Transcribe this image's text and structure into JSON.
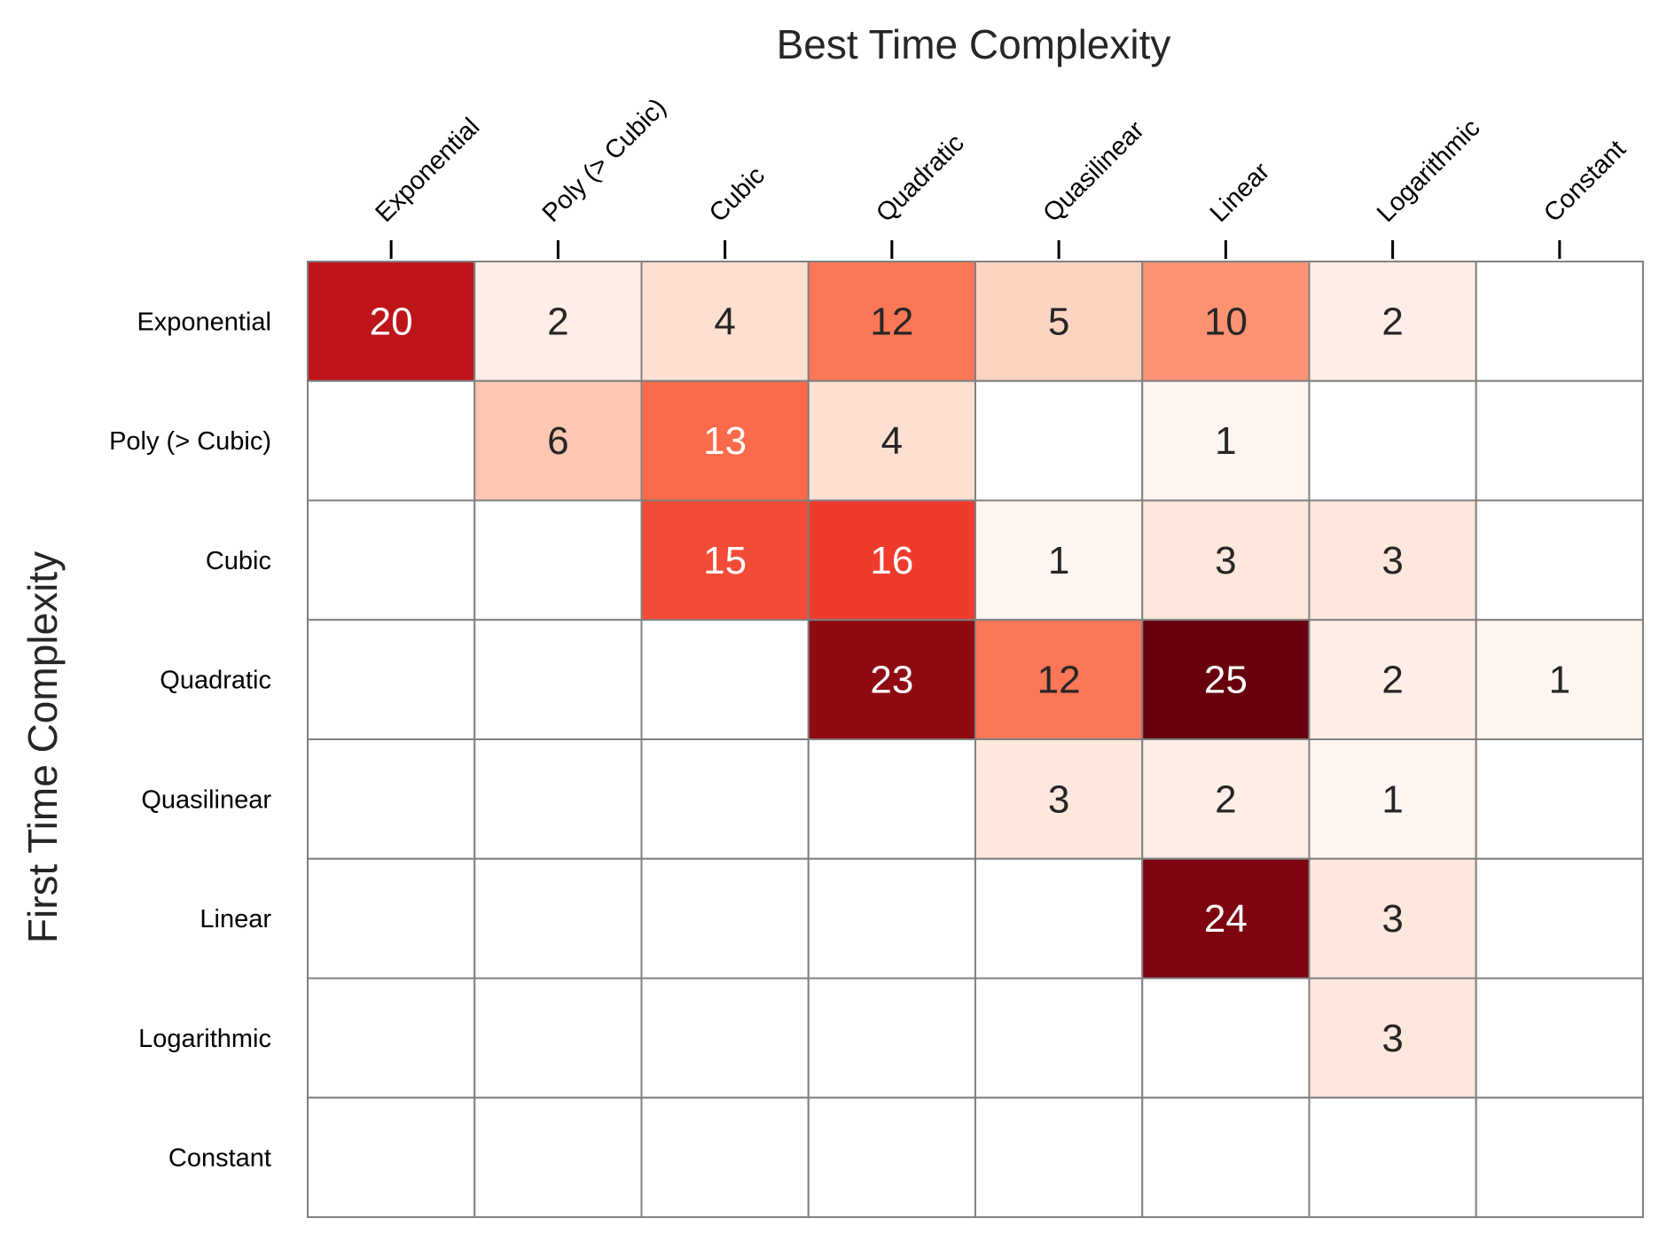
{
  "chart_data": {
    "type": "heatmap",
    "title": "Best Time Complexity",
    "xlabel": "Best Time Complexity",
    "ylabel": "First Time Complexity",
    "x_categories": [
      "Exponential",
      "Poly (> Cubic)",
      "Cubic",
      "Quadratic",
      "Quasilinear",
      "Linear",
      "Logarithmic",
      "Constant"
    ],
    "y_categories": [
      "Exponential",
      "Poly (> Cubic)",
      "Cubic",
      "Quadratic",
      "Quasilinear",
      "Linear",
      "Logarithmic",
      "Constant"
    ],
    "values": [
      [
        20,
        2,
        4,
        12,
        5,
        10,
        2,
        null
      ],
      [
        null,
        6,
        13,
        4,
        null,
        1,
        null,
        null
      ],
      [
        null,
        null,
        15,
        16,
        1,
        3,
        3,
        null
      ],
      [
        null,
        null,
        null,
        23,
        12,
        25,
        2,
        1
      ],
      [
        null,
        null,
        null,
        null,
        3,
        2,
        1,
        null
      ],
      [
        null,
        null,
        null,
        null,
        null,
        24,
        3,
        null
      ],
      [
        null,
        null,
        null,
        null,
        null,
        null,
        3,
        null
      ],
      [
        null,
        null,
        null,
        null,
        null,
        null,
        null,
        null
      ]
    ],
    "colormap": "Reds",
    "vmin": 1,
    "vmax": 25,
    "empty_cell_color": "#ffffff",
    "gridline_color": "#808080",
    "x_axis_position": "top",
    "x_tick_rotation_deg": -45,
    "colorbar": false
  }
}
